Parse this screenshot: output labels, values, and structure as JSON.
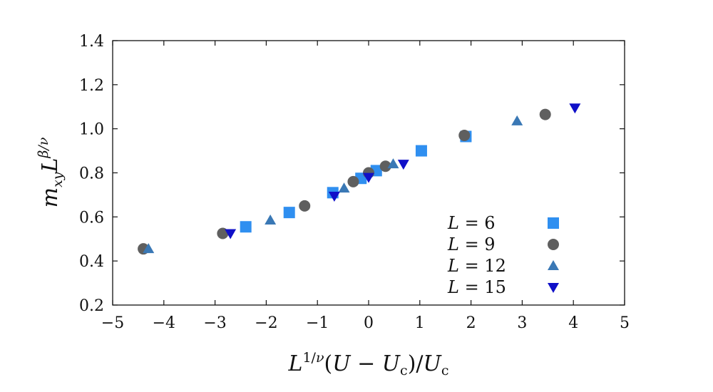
{
  "chart_data": {
    "type": "scatter",
    "xlabel": "L^{1/ν}(U − U_c)/U_c",
    "ylabel": "m_{xy} L^{β/ν}",
    "xlim": [
      -5,
      5
    ],
    "ylim": [
      0.2,
      1.4
    ],
    "xticks": [
      -5,
      -4,
      -3,
      -2,
      -1,
      0,
      1,
      2,
      3,
      4,
      5
    ],
    "yticks": [
      0.2,
      0.4,
      0.6,
      0.8,
      1.0,
      1.2,
      1.4
    ],
    "xtick_labels": [
      "−5",
      "−4",
      "−3",
      "−2",
      "−1",
      "0",
      "1",
      "2",
      "3",
      "4",
      "5"
    ],
    "ytick_labels": [
      "0.2",
      "0.4",
      "0.6",
      "0.8",
      "1.0",
      "1.2",
      "1.4"
    ],
    "grid": false,
    "legend": "lower-right",
    "series": [
      {
        "name": "L = 6",
        "marker": "square",
        "color": "#2f8ff0",
        "points": [
          [
            -2.4,
            0.555
          ],
          [
            -1.55,
            0.62
          ],
          [
            -0.7,
            0.71
          ],
          [
            -0.15,
            0.775
          ],
          [
            0.15,
            0.81
          ],
          [
            1.03,
            0.9
          ],
          [
            1.9,
            0.965
          ]
        ]
      },
      {
        "name": "L = 9",
        "marker": "circle",
        "color": "#5f5f5f",
        "points": [
          [
            -4.4,
            0.455
          ],
          [
            -2.85,
            0.525
          ],
          [
            -1.25,
            0.65
          ],
          [
            -0.3,
            0.76
          ],
          [
            0.0,
            0.8
          ],
          [
            0.33,
            0.83
          ],
          [
            1.87,
            0.97
          ],
          [
            3.45,
            1.065
          ]
        ]
      },
      {
        "name": "L = 12",
        "marker": "triangle-up",
        "color": "#3a78b5",
        "points": [
          [
            -4.3,
            0.455
          ],
          [
            -1.92,
            0.585
          ],
          [
            -0.48,
            0.73
          ],
          [
            0.48,
            0.84
          ],
          [
            2.9,
            1.035
          ]
        ]
      },
      {
        "name": "L = 15",
        "marker": "triangle-down",
        "color": "#1010c8",
        "points": [
          [
            -2.7,
            0.525
          ],
          [
            -0.67,
            0.695
          ],
          [
            0.0,
            0.78
          ],
          [
            0.68,
            0.84
          ],
          [
            4.03,
            1.095
          ]
        ]
      }
    ]
  }
}
